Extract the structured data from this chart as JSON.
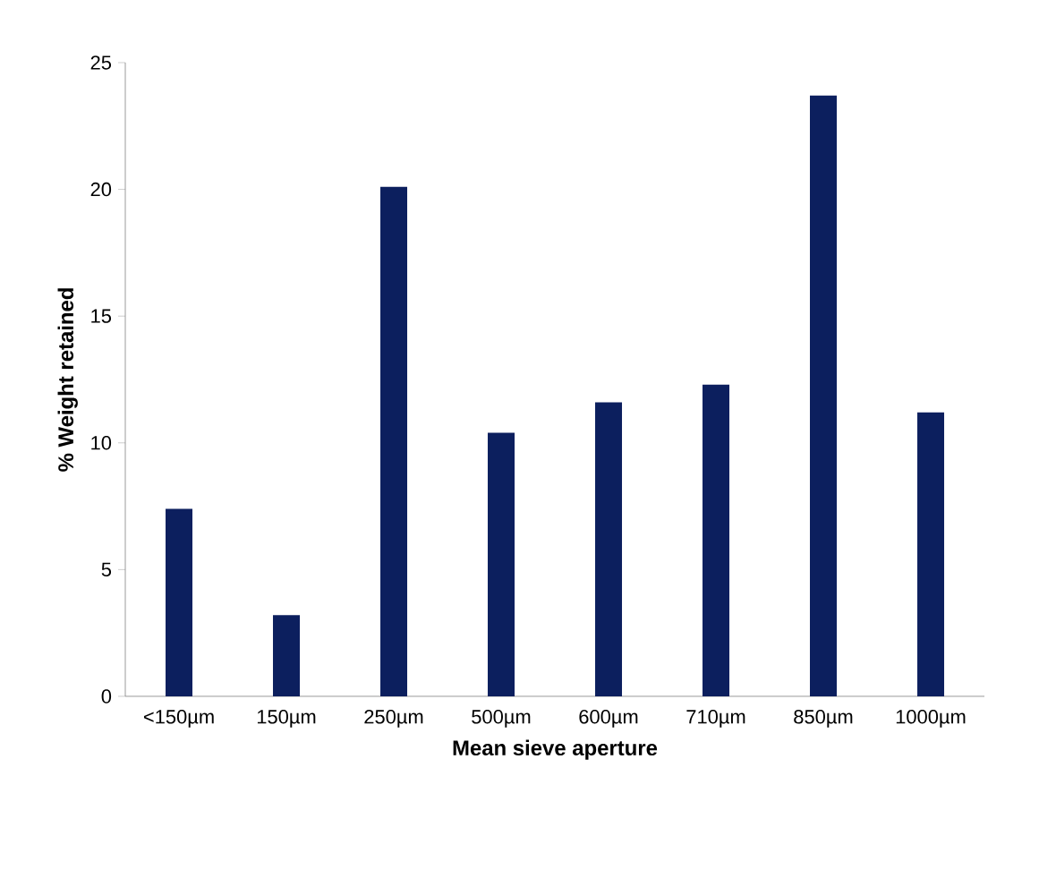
{
  "chart_data": {
    "type": "bar",
    "xlabel": "Mean sieve aperture",
    "ylabel": "% Weight retained",
    "categories": [
      "<150µm",
      "150µm",
      "250µm",
      "500µm",
      "600µm",
      "710µm",
      "850µm",
      "1000µm"
    ],
    "values": [
      7.4,
      3.2,
      20.1,
      10.4,
      11.6,
      12.3,
      23.7,
      11.2
    ],
    "color": "#0c1f5e",
    "ylim": [
      0,
      25
    ],
    "yticks": [
      0,
      5,
      10,
      15,
      20,
      25
    ],
    "grid": false
  }
}
